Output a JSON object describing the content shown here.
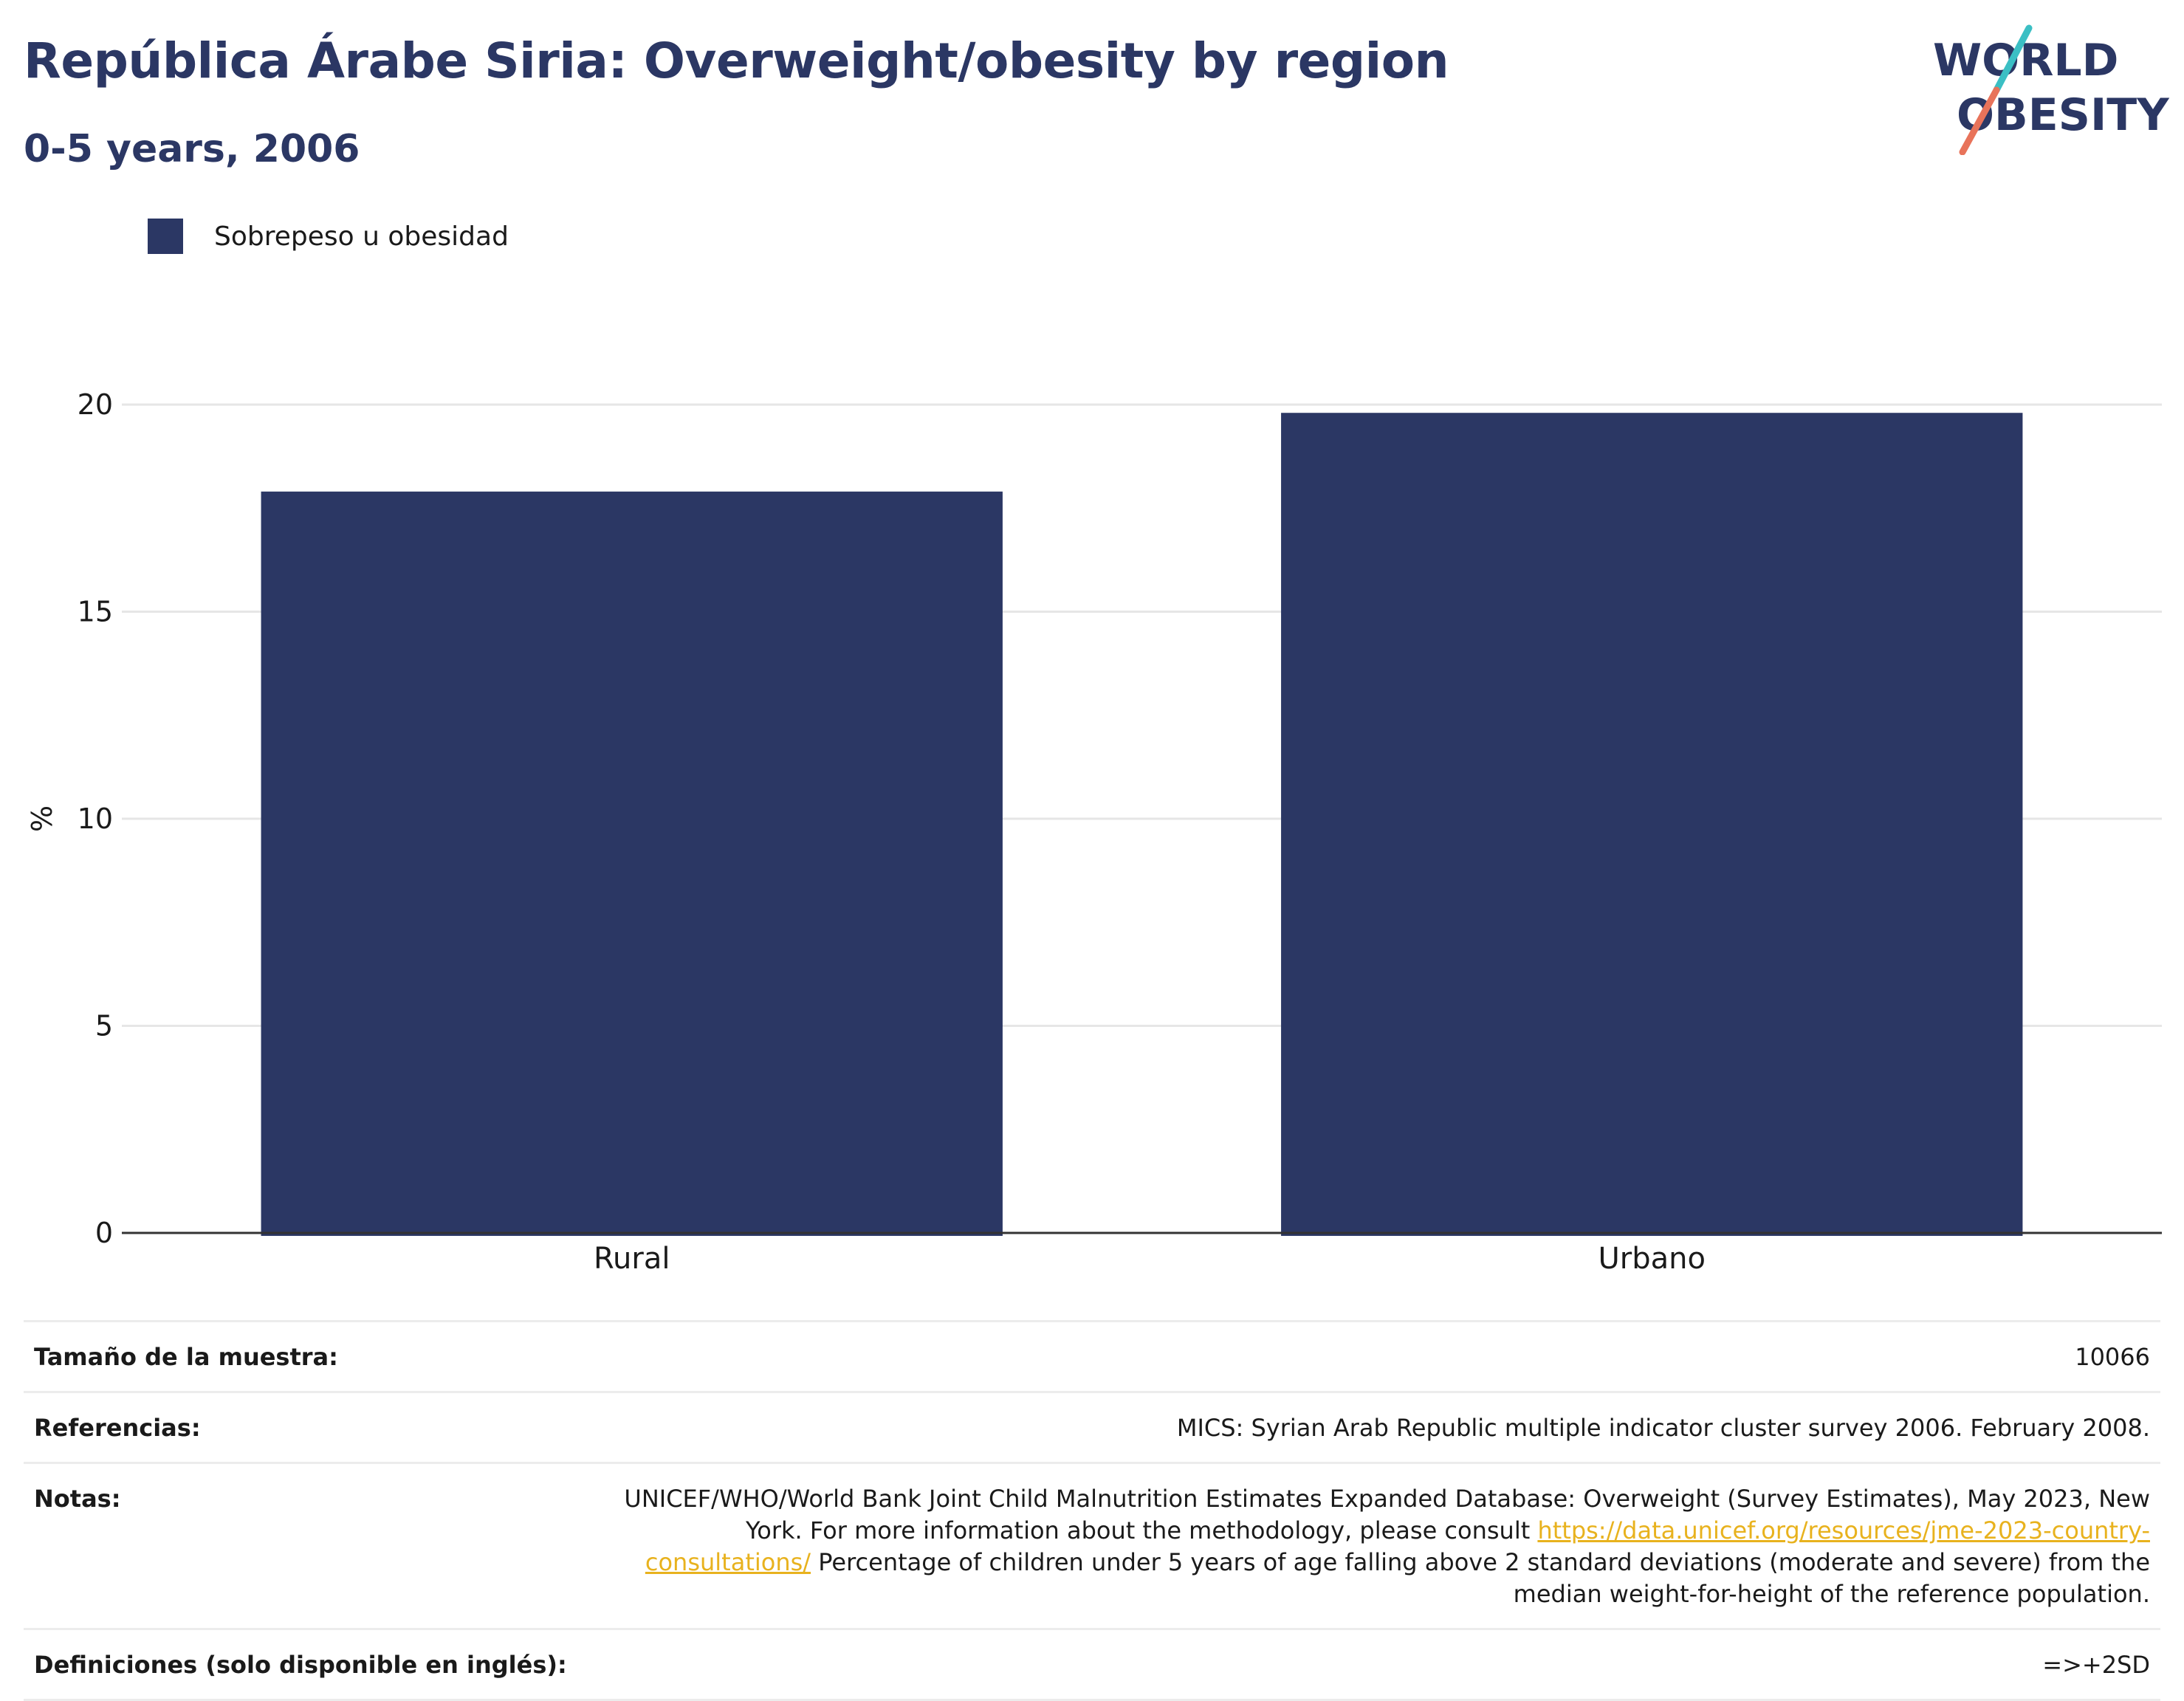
{
  "header": {
    "title": "República Árabe Siria: Overweight/obesity by region",
    "subtitle": "0-5 years, 2006"
  },
  "logo": {
    "line1": "WORLD",
    "line2": "OBESITY",
    "colors": {
      "text": "#2b3764",
      "slash_top": "#3bbfc4",
      "slash_bottom": "#e8735a"
    }
  },
  "chart_data": {
    "type": "bar",
    "categories": [
      "Rural",
      "Urbano"
    ],
    "series": [
      {
        "name": "Sobrepeso u obesidad",
        "color": "#2b3764",
        "values": [
          17.9,
          19.8
        ]
      }
    ],
    "ylabel": "%",
    "ylim": [
      0,
      20
    ],
    "yticks": [
      0,
      5,
      10,
      15,
      20
    ],
    "grid": true,
    "legend_position": "top-left"
  },
  "info": {
    "sample_label": "Tamaño de la muestra:",
    "sample_value": "10066",
    "refs_label": "Referencias:",
    "refs_value": "MICS: Syrian Arab Republic multiple indicator cluster survey 2006. February 2008.",
    "notes_label": "Notas:",
    "notes_text_1": "UNICEF/WHO/World Bank Joint Child Malnutrition Estimates Expanded Database: Overweight (Survey Estimates), May 2023, New York. For more information about the methodology, please consult ",
    "notes_link": "https://data.unicef.org/resources/jme-2023-country-consultations/",
    "notes_text_2": " Percentage of children under 5 years of age falling above 2 standard deviations (moderate and severe) from the median weight-for-height of the reference population.",
    "defs_label": "Definiciones (solo disponible en inglés):",
    "defs_value": "=>+2SD"
  }
}
